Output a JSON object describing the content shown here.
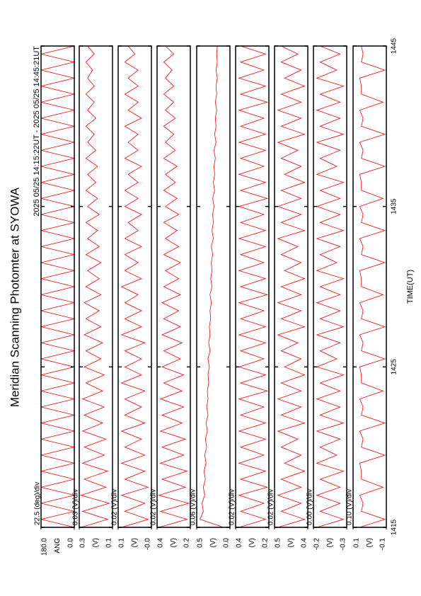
{
  "title": "Meridian Scanning Photomter at SYOWA",
  "subtitle": "2025 05/25 14:15:22UT - 2025 05/25 14:45:21UT",
  "time_axis": {
    "label": "TIME(UT)",
    "xlim": [
      1415,
      1445
    ],
    "xticks": [
      1415,
      1425,
      1435,
      1445
    ],
    "x": [
      1415,
      1415.5,
      1416,
      1416.5,
      1417,
      1417.5,
      1418,
      1418.5,
      1419,
      1419.5,
      1420,
      1420.5,
      1421,
      1421.5,
      1422,
      1422.5,
      1423,
      1423.5,
      1424,
      1424.5,
      1425,
      1425.5,
      1426,
      1426.5,
      1427,
      1427.5,
      1428,
      1428.5,
      1429,
      1429.5,
      1430,
      1430.5,
      1431,
      1431.5,
      1432,
      1432.5,
      1433,
      1433.5,
      1434,
      1434.5,
      1435,
      1435.5,
      1436,
      1436.5,
      1437,
      1437.5,
      1438,
      1438.5,
      1439,
      1439.5,
      1440,
      1440.5,
      1441,
      1441.5,
      1442,
      1442.5,
      1443,
      1443.5,
      1444,
      1444.5,
      1445
    ]
  },
  "chart_data": [
    {
      "type": "line",
      "label": "22.5 (deg)/div",
      "ylabel": "ANG",
      "ylim": [
        0,
        180
      ],
      "yticks": [
        {
          "value": 180,
          "label": "180.0"
        },
        {
          "value": 0,
          "label": "0.0"
        }
      ],
      "color": "#ff0000",
      "values": [
        0,
        180,
        0,
        180,
        0,
        180,
        0,
        180,
        0,
        180,
        0,
        180,
        0,
        180,
        0,
        180,
        0,
        180,
        0,
        180,
        0,
        180,
        0,
        180,
        0,
        180,
        0,
        180,
        0,
        180,
        0,
        180,
        0,
        180,
        0,
        180,
        0,
        180,
        0,
        180,
        0,
        180,
        0,
        180,
        0,
        180,
        0,
        180,
        0,
        180,
        0,
        180,
        0,
        180,
        0,
        180,
        0,
        180,
        0,
        180,
        0
      ]
    },
    {
      "type": "line",
      "label": "0.03 (V)/div",
      "ylabel": "(V)",
      "ylim": [
        0.1,
        0.3
      ],
      "yticks": [
        0.3,
        0.1
      ],
      "color": "#ff0000",
      "values": [
        0.29,
        0.13,
        0.28,
        0.12,
        0.29,
        0.14,
        0.27,
        0.13,
        0.28,
        0.15,
        0.27,
        0.14,
        0.28,
        0.16,
        0.27,
        0.15,
        0.28,
        0.16,
        0.26,
        0.15,
        0.27,
        0.17,
        0.26,
        0.16,
        0.27,
        0.17,
        0.26,
        0.18,
        0.27,
        0.17,
        0.26,
        0.18,
        0.25,
        0.17,
        0.26,
        0.18,
        0.25,
        0.19,
        0.26,
        0.18,
        0.25,
        0.19,
        0.26,
        0.2,
        0.25,
        0.19,
        0.26,
        0.2,
        0.25,
        0.21,
        0.26,
        0.2,
        0.25,
        0.21,
        0.26,
        0.21,
        0.25,
        0.22,
        0.26,
        0.21,
        0.25
      ]
    },
    {
      "type": "line",
      "label": "0.02 (V)/div",
      "ylabel": "(V)",
      "ylim": [
        0,
        0.1
      ],
      "yticks": [
        0.1,
        {
          "value": 0,
          "label": "-0.0"
        }
      ],
      "color": "#ff0000",
      "values": [
        0.09,
        0.01,
        0.08,
        0.02,
        0.09,
        0.01,
        0.08,
        0.02,
        0.09,
        0.02,
        0.08,
        0.03,
        0.09,
        0.02,
        0.08,
        0.03,
        0.08,
        0.02,
        0.09,
        0.03,
        0.08,
        0.03,
        0.08,
        0.02,
        0.09,
        0.03,
        0.08,
        0.03,
        0.08,
        0.04,
        0.09,
        0.03,
        0.08,
        0.04,
        0.08,
        0.03,
        0.08,
        0.04,
        0.07,
        0.03,
        0.08,
        0.04,
        0.08,
        0.04,
        0.07,
        0.03,
        0.08,
        0.04,
        0.07,
        0.04,
        0.08,
        0.03,
        0.07,
        0.04,
        0.08,
        0.04,
        0.07,
        0.04,
        0.08,
        0.05,
        0.07
      ]
    },
    {
      "type": "line",
      "label": "0.02 (V)/div",
      "ylabel": "(V)",
      "ylim": [
        0.2,
        0.4
      ],
      "yticks": [
        0.4,
        0.2
      ],
      "color": "#ff0000",
      "values": [
        0.39,
        0.22,
        0.38,
        0.21,
        0.39,
        0.23,
        0.37,
        0.22,
        0.38,
        0.24,
        0.37,
        0.23,
        0.38,
        0.25,
        0.37,
        0.24,
        0.38,
        0.25,
        0.36,
        0.24,
        0.37,
        0.26,
        0.36,
        0.25,
        0.37,
        0.26,
        0.36,
        0.27,
        0.37,
        0.26,
        0.36,
        0.27,
        0.35,
        0.26,
        0.36,
        0.27,
        0.35,
        0.28,
        0.36,
        0.27,
        0.35,
        0.28,
        0.36,
        0.29,
        0.35,
        0.28,
        0.36,
        0.29,
        0.35,
        0.3,
        0.36,
        0.29,
        0.35,
        0.3,
        0.36,
        0.3,
        0.35,
        0.31,
        0.36,
        0.3,
        0.35
      ]
    },
    {
      "type": "line",
      "label": "0.06 (V)/div",
      "ylabel": "(V)",
      "ylim": [
        0,
        0.5
      ],
      "yticks": [
        0.5,
        {
          "value": 0,
          "label": "0.0"
        }
      ],
      "color": "#ff0000",
      "values": [
        0.1,
        0.45,
        0.4,
        0.42,
        0.38,
        0.4,
        0.37,
        0.39,
        0.36,
        0.38,
        0.35,
        0.37,
        0.34,
        0.36,
        0.33,
        0.35,
        0.33,
        0.34,
        0.32,
        0.33,
        0.31,
        0.33,
        0.3,
        0.32,
        0.3,
        0.31,
        0.29,
        0.3,
        0.28,
        0.3,
        0.27,
        0.29,
        0.27,
        0.28,
        0.26,
        0.28,
        0.25,
        0.27,
        0.25,
        0.26,
        0.24,
        0.26,
        0.23,
        0.25,
        0.23,
        0.24,
        0.22,
        0.24,
        0.21,
        0.23,
        0.21,
        0.22,
        0.2,
        0.22,
        0.2,
        0.21,
        0.19,
        0.21,
        0.19,
        0.2,
        0.19
      ]
    },
    {
      "type": "line",
      "label": "0.02 (V)/div",
      "ylabel": "(V)",
      "ylim": [
        0.2,
        0.4
      ],
      "yticks": [
        0.4,
        0.2
      ],
      "color": "#ff0000",
      "values": [
        0.38,
        0.22,
        0.37,
        0.23,
        0.38,
        0.21,
        0.37,
        0.22,
        0.38,
        0.23,
        0.37,
        0.22,
        0.38,
        0.22,
        0.37,
        0.23,
        0.38,
        0.21,
        0.37,
        0.22,
        0.38,
        0.23,
        0.37,
        0.22,
        0.38,
        0.22,
        0.37,
        0.23,
        0.38,
        0.21,
        0.37,
        0.22,
        0.38,
        0.23,
        0.37,
        0.22,
        0.38,
        0.22,
        0.37,
        0.23,
        0.38,
        0.21,
        0.37,
        0.22,
        0.38,
        0.23,
        0.37,
        0.22,
        0.38,
        0.22,
        0.37,
        0.23,
        0.38,
        0.21,
        0.37,
        0.22,
        0.38,
        0.23,
        0.37,
        0.22,
        0.37
      ]
    },
    {
      "type": "line",
      "label": "0.02 (V)/div",
      "ylabel": "(V)",
      "ylim": [
        0.4,
        0.5
      ],
      "yticks": [
        0.5,
        0.4
      ],
      "color": "#ff0000",
      "values": [
        0.49,
        0.41,
        0.48,
        0.42,
        0.49,
        0.42,
        0.48,
        0.41,
        0.47,
        0.42,
        0.48,
        0.43,
        0.49,
        0.41,
        0.48,
        0.42,
        0.49,
        0.42,
        0.48,
        0.41,
        0.47,
        0.42,
        0.48,
        0.43,
        0.49,
        0.41,
        0.48,
        0.42,
        0.49,
        0.42,
        0.48,
        0.41,
        0.47,
        0.42,
        0.48,
        0.43,
        0.49,
        0.41,
        0.48,
        0.42,
        0.49,
        0.42,
        0.48,
        0.41,
        0.47,
        0.42,
        0.48,
        0.43,
        0.49,
        0.41,
        0.48,
        0.42,
        0.49,
        0.42,
        0.48,
        0.41,
        0.47,
        0.42,
        0.48,
        0.43,
        0.48
      ]
    },
    {
      "type": "line",
      "label": "0.00 (V)/div",
      "ylabel": "(V)",
      "ylim": [
        -0.3,
        -0.2
      ],
      "yticks": [
        -0.2,
        -0.3
      ],
      "color": "#ff0000",
      "values": [
        -0.21,
        -0.29,
        -0.22,
        -0.28,
        -0.21,
        -0.28,
        -0.22,
        -0.29,
        -0.21,
        -0.27,
        -0.22,
        -0.28,
        -0.21,
        -0.29,
        -0.22,
        -0.28,
        -0.21,
        -0.28,
        -0.22,
        -0.29,
        -0.21,
        -0.27,
        -0.22,
        -0.28,
        -0.21,
        -0.29,
        -0.22,
        -0.28,
        -0.21,
        -0.28,
        -0.22,
        -0.29,
        -0.21,
        -0.27,
        -0.22,
        -0.28,
        -0.21,
        -0.29,
        -0.22,
        -0.28,
        -0.21,
        -0.28,
        -0.22,
        -0.29,
        -0.21,
        -0.27,
        -0.22,
        -0.28,
        -0.21,
        -0.29,
        -0.22,
        -0.28,
        -0.21,
        -0.28,
        -0.22,
        -0.29,
        -0.21,
        -0.27,
        -0.22,
        -0.28,
        -0.22
      ]
    },
    {
      "type": "line",
      "label": "0.10 (V)/div",
      "ylabel": "(V)",
      "ylim": [
        -0.1,
        0.1
      ],
      "yticks": [
        0.1,
        -0.1
      ],
      "color": "#ff0000",
      "values": [
        0.06,
        -0.09,
        0.05,
        0.04,
        0.06,
        -0.08,
        0.05,
        0.05,
        0.06,
        -0.09,
        0.05,
        0.04,
        0.06,
        -0.09,
        0.05,
        0.04,
        0.06,
        -0.08,
        0.05,
        0.05,
        0.06,
        -0.09,
        0.05,
        0.04,
        0.06,
        -0.09,
        0.05,
        0.04,
        0.06,
        -0.08,
        0.05,
        0.05,
        0.06,
        -0.09,
        0.05,
        0.04,
        0.06,
        -0.09,
        0.05,
        0.04,
        0.06,
        -0.08,
        0.05,
        0.05,
        0.06,
        -0.09,
        0.05,
        0.04,
        0.06,
        -0.09,
        0.05,
        0.04,
        0.06,
        -0.08,
        0.05,
        0.05,
        0.06,
        -0.09,
        0.05,
        0.04,
        0.05
      ]
    }
  ]
}
